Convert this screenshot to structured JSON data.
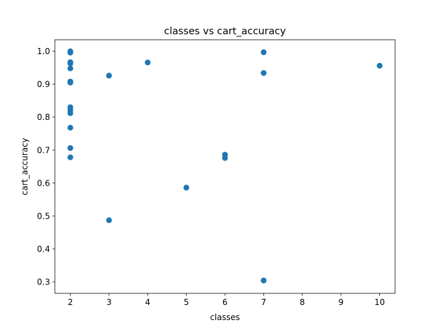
{
  "chart_data": {
    "type": "scatter",
    "title": "classes vs cart_accuracy",
    "xlabel": "classes",
    "ylabel": "cart_accuracy",
    "xlim": [
      1.6,
      10.4
    ],
    "ylim": [
      0.265,
      1.035
    ],
    "xticks": [
      2,
      3,
      4,
      5,
      6,
      7,
      8,
      9,
      10
    ],
    "yticks": [
      0.3,
      0.4,
      0.5,
      0.6,
      0.7,
      0.8,
      0.9,
      1.0
    ],
    "grid": false,
    "marker_color": "#1f77b4",
    "series": [
      {
        "points": [
          [
            2,
            1.0
          ],
          [
            2,
            0.996
          ],
          [
            2,
            0.967
          ],
          [
            2,
            0.963
          ],
          [
            2,
            0.948
          ],
          [
            2,
            0.908
          ],
          [
            2,
            0.905
          ],
          [
            2,
            0.83
          ],
          [
            2,
            0.821
          ],
          [
            2,
            0.812
          ],
          [
            2,
            0.768
          ],
          [
            2,
            0.706
          ],
          [
            2,
            0.678
          ],
          [
            3,
            0.926
          ],
          [
            3,
            0.487
          ],
          [
            4,
            0.966
          ],
          [
            5,
            0.586
          ],
          [
            6,
            0.686
          ],
          [
            6,
            0.676
          ],
          [
            7,
            0.997
          ],
          [
            7,
            0.934
          ],
          [
            7,
            0.304
          ],
          [
            10,
            0.956
          ]
        ]
      }
    ]
  }
}
